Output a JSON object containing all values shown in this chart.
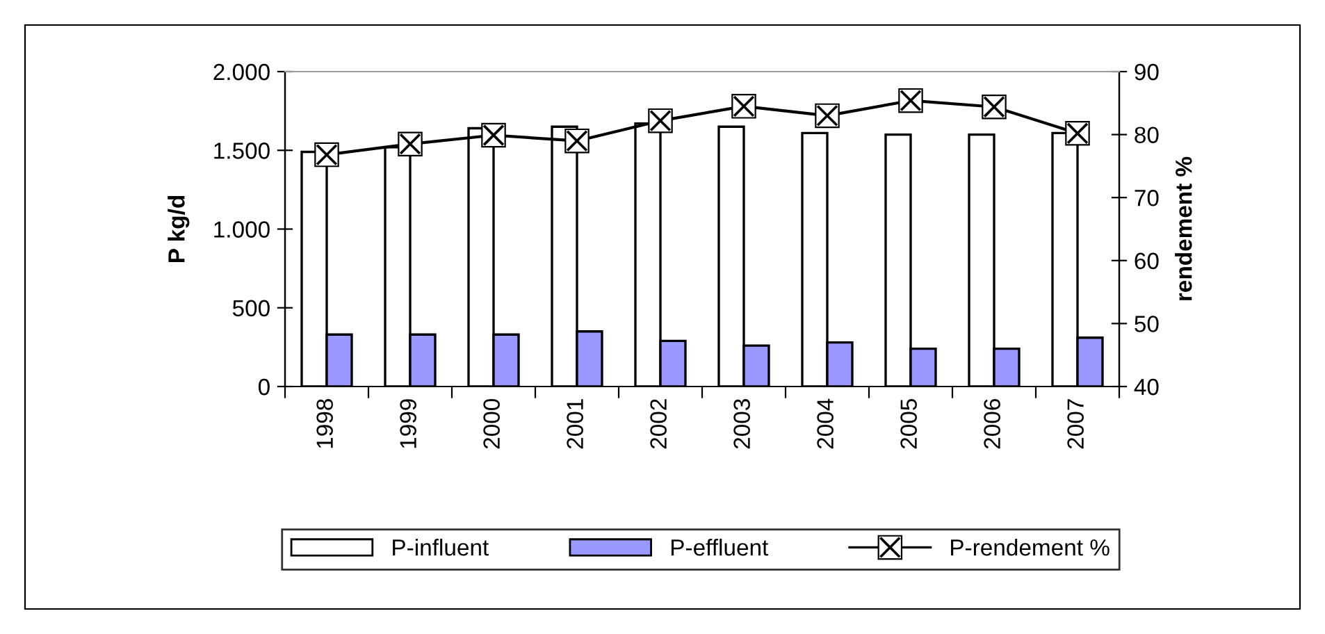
{
  "chart_data": {
    "type": "bar",
    "ylabel": "P kg/d",
    "y2label": "rendement %",
    "categories": [
      "1998",
      "1999",
      "2000",
      "2001",
      "2002",
      "2003",
      "2004",
      "2005",
      "2006",
      "2007"
    ],
    "series": [
      {
        "name": "P-influent",
        "color": "#ffffff",
        "values": [
          1490,
          1520,
          1640,
          1650,
          1670,
          1650,
          1610,
          1600,
          1600,
          1610
        ]
      },
      {
        "name": "P-effluent",
        "color": "#9999ff",
        "values": [
          330,
          330,
          330,
          350,
          290,
          260,
          280,
          240,
          240,
          310
        ]
      },
      {
        "name": "P-rendement %",
        "type": "line",
        "axis": "y2",
        "color": "#000000",
        "marker": "cross",
        "values": [
          76.8,
          78.5,
          79.9,
          79.0,
          82.2,
          84.5,
          83.0,
          85.4,
          84.4,
          80.2
        ]
      }
    ],
    "ylim": [
      0,
      2000
    ],
    "yticks": [
      0,
      {
        "value": 500,
        "label": "500"
      },
      {
        "value": 1000,
        "label": "1.000"
      },
      {
        "value": 1500,
        "label": "1.500"
      },
      {
        "value": 2000,
        "label": "2.000"
      }
    ],
    "y2lim": [
      40,
      90
    ],
    "y2ticks": [
      40,
      50,
      60,
      70,
      80,
      90
    ],
    "grid": false,
    "legend": "bottom"
  }
}
